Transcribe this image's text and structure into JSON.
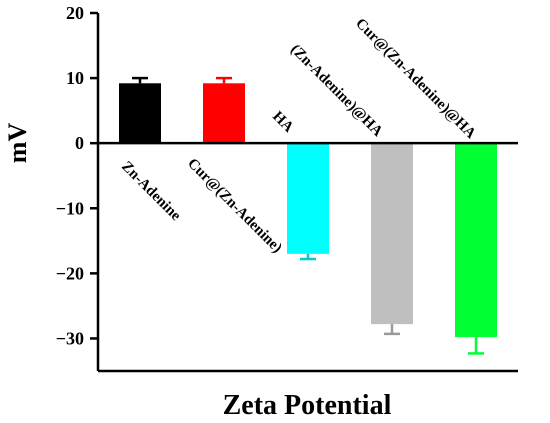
{
  "chart_data": {
    "type": "bar",
    "xlabel": "Zeta Potential",
    "ylabel": "mV",
    "ylim": [
      -35,
      20
    ],
    "yticks": [
      20,
      10,
      0,
      -10,
      -20,
      -30
    ],
    "ytick_labels": [
      "20",
      "10",
      "0",
      "−10",
      "−20",
      "−30"
    ],
    "grid": false,
    "legend": "none",
    "categories": [
      "Zn-Adenine",
      "Cur@(Zn-Adenine)",
      "HA",
      "(Zn-Adenine)@HA",
      "Cur@(Zn-Adenine)@HA"
    ],
    "values": [
      9.2,
      9.2,
      -17.0,
      -27.8,
      -29.8
    ],
    "errors": [
      0.8,
      0.8,
      0.8,
      1.5,
      2.5
    ],
    "colors": [
      "#000000",
      "#ff0000",
      "#00ffff",
      "#bfbfbf",
      "#00ff33"
    ]
  }
}
